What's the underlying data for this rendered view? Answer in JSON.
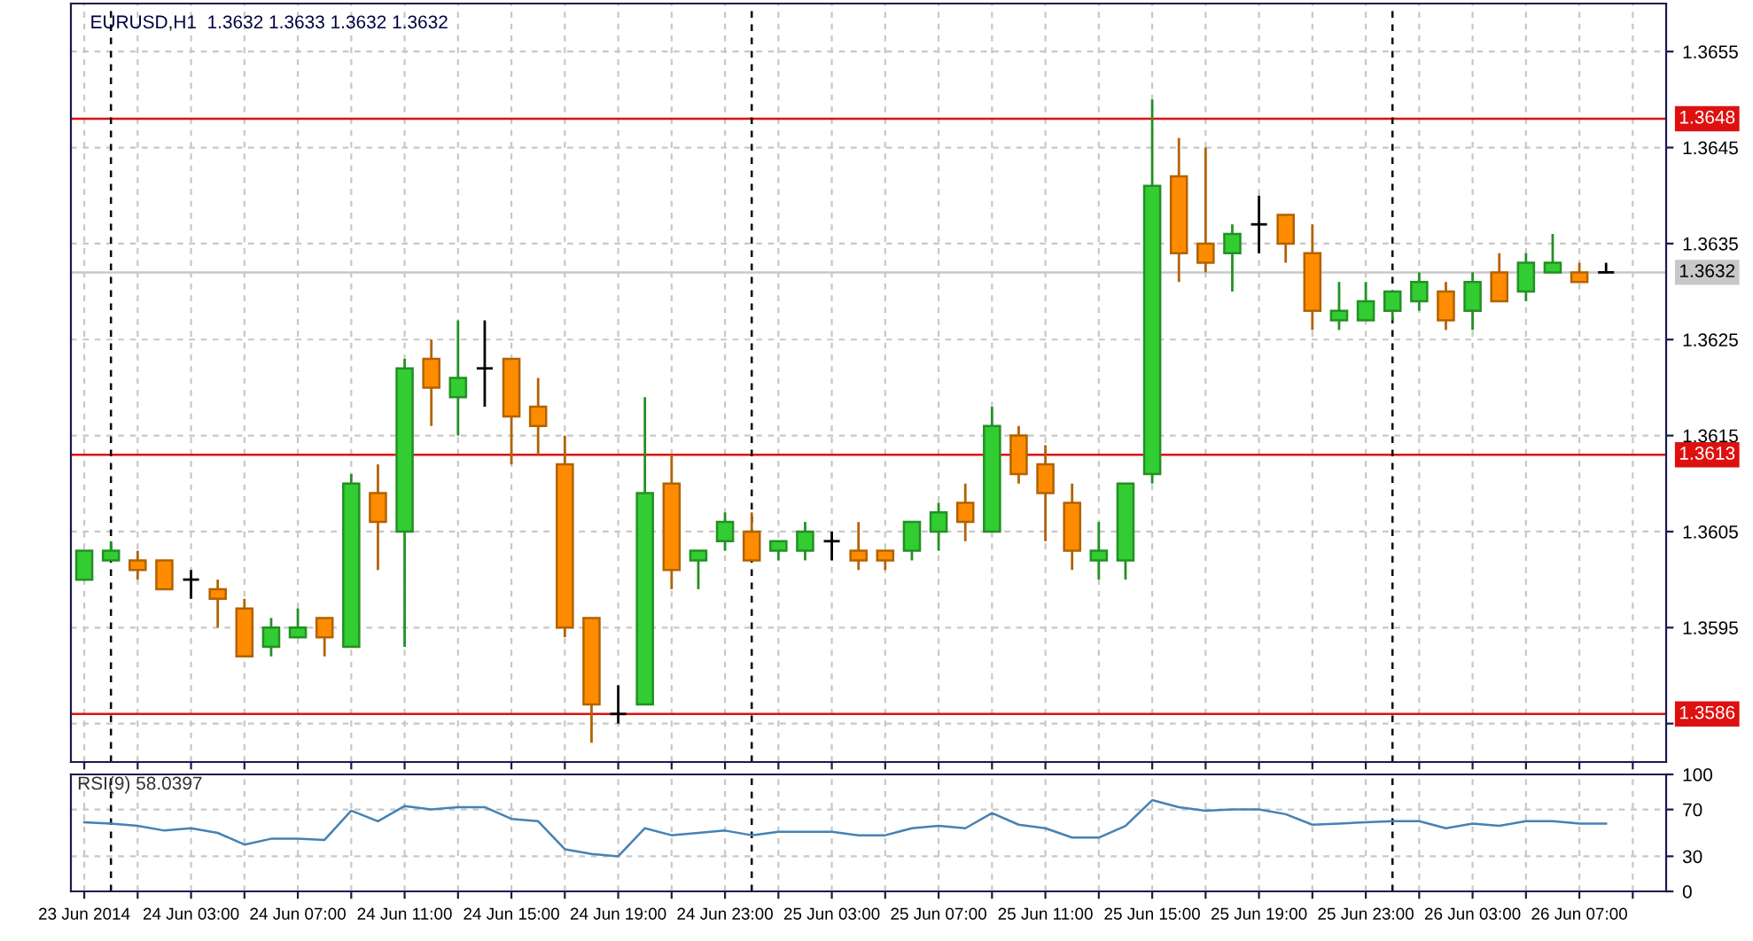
{
  "chart_data": [
    {
      "type": "candlestick",
      "title": "EURUSD,H1  1.3632 1.3633 1.3632 1.3632",
      "x": [
        "2014-06-23T23:00",
        "2014-06-24T00:00",
        "2014-06-24T01:00",
        "2014-06-24T02:00",
        "2014-06-24T03:00",
        "2014-06-24T04:00",
        "2014-06-24T05:00",
        "2014-06-24T06:00",
        "2014-06-24T07:00",
        "2014-06-24T08:00",
        "2014-06-24T09:00",
        "2014-06-24T10:00",
        "2014-06-24T11:00",
        "2014-06-24T12:00",
        "2014-06-24T13:00",
        "2014-06-24T14:00",
        "2014-06-24T15:00",
        "2014-06-24T16:00",
        "2014-06-24T17:00",
        "2014-06-24T18:00",
        "2014-06-24T19:00",
        "2014-06-24T20:00",
        "2014-06-24T21:00",
        "2014-06-24T22:00",
        "2014-06-24T23:00",
        "2014-06-25T00:00",
        "2014-06-25T01:00",
        "2014-06-25T02:00",
        "2014-06-25T03:00",
        "2014-06-25T04:00",
        "2014-06-25T05:00",
        "2014-06-25T06:00",
        "2014-06-25T07:00",
        "2014-06-25T08:00",
        "2014-06-25T09:00",
        "2014-06-25T10:00",
        "2014-06-25T11:00",
        "2014-06-25T12:00",
        "2014-06-25T13:00",
        "2014-06-25T14:00",
        "2014-06-25T15:00",
        "2014-06-25T16:00",
        "2014-06-25T17:00",
        "2014-06-25T18:00",
        "2014-06-25T19:00",
        "2014-06-25T20:00",
        "2014-06-25T21:00",
        "2014-06-25T22:00",
        "2014-06-25T23:00",
        "2014-06-26T00:00",
        "2014-06-26T01:00",
        "2014-06-26T02:00",
        "2014-06-26T03:00",
        "2014-06-26T04:00",
        "2014-06-26T05:00",
        "2014-06-26T06:00",
        "2014-06-26T07:00",
        "2014-06-26T08:00"
      ],
      "ohlc": [
        [
          1.36,
          1.3603,
          1.36,
          1.3603
        ],
        [
          1.3602,
          1.3604,
          1.3602,
          1.3603
        ],
        [
          1.3602,
          1.3603,
          1.36,
          1.3601
        ],
        [
          1.3602,
          1.3602,
          1.3599,
          1.3599
        ],
        [
          1.36,
          1.3601,
          1.3598,
          1.36
        ],
        [
          1.3599,
          1.36,
          1.3595,
          1.3598
        ],
        [
          1.3597,
          1.3598,
          1.3592,
          1.3592
        ],
        [
          1.3593,
          1.3596,
          1.3592,
          1.3595
        ],
        [
          1.3594,
          1.3597,
          1.3594,
          1.3595
        ],
        [
          1.3596,
          1.3596,
          1.3592,
          1.3594
        ],
        [
          1.3593,
          1.3611,
          1.3593,
          1.361
        ],
        [
          1.3609,
          1.3612,
          1.3601,
          1.3606
        ],
        [
          1.3605,
          1.3623,
          1.3593,
          1.3622
        ],
        [
          1.3623,
          1.3625,
          1.3616,
          1.362
        ],
        [
          1.3619,
          1.3627,
          1.3615,
          1.3621
        ],
        [
          1.3622,
          1.3627,
          1.3618,
          1.3622
        ],
        [
          1.3623,
          1.3623,
          1.3612,
          1.3617
        ],
        [
          1.3618,
          1.3621,
          1.3613,
          1.3616
        ],
        [
          1.3612,
          1.3615,
          1.3594,
          1.3595
        ],
        [
          1.3596,
          1.3596,
          1.3583,
          1.3587
        ],
        [
          1.3586,
          1.3589,
          1.3585,
          1.3586
        ],
        [
          1.3587,
          1.3619,
          1.3587,
          1.3609
        ],
        [
          1.361,
          1.3613,
          1.3599,
          1.3601
        ],
        [
          1.3602,
          1.3603,
          1.3599,
          1.3603
        ],
        [
          1.3604,
          1.3607,
          1.3603,
          1.3606
        ],
        [
          1.3605,
          1.3607,
          1.3602,
          1.3602
        ],
        [
          1.3603,
          1.3604,
          1.3602,
          1.3604
        ],
        [
          1.3603,
          1.3606,
          1.3602,
          1.3605
        ],
        [
          1.3604,
          1.3605,
          1.3602,
          1.3604
        ],
        [
          1.3603,
          1.3606,
          1.3601,
          1.3602
        ],
        [
          1.3603,
          1.3603,
          1.3601,
          1.3602
        ],
        [
          1.3603,
          1.3606,
          1.3602,
          1.3606
        ],
        [
          1.3605,
          1.3608,
          1.3603,
          1.3607
        ],
        [
          1.3608,
          1.361,
          1.3604,
          1.3606
        ],
        [
          1.3605,
          1.3618,
          1.3605,
          1.3616
        ],
        [
          1.3615,
          1.3616,
          1.361,
          1.3611
        ],
        [
          1.3612,
          1.3614,
          1.3604,
          1.3609
        ],
        [
          1.3608,
          1.361,
          1.3601,
          1.3603
        ],
        [
          1.3602,
          1.3606,
          1.36,
          1.3603
        ],
        [
          1.3602,
          1.361,
          1.36,
          1.361
        ],
        [
          1.3611,
          1.365,
          1.361,
          1.3641
        ],
        [
          1.3642,
          1.3646,
          1.3631,
          1.3634
        ],
        [
          1.3635,
          1.3645,
          1.3632,
          1.3633
        ],
        [
          1.3634,
          1.3637,
          1.363,
          1.3636
        ],
        [
          1.3637,
          1.364,
          1.3634,
          1.3637
        ],
        [
          1.3638,
          1.3638,
          1.3633,
          1.3635
        ],
        [
          1.3634,
          1.3637,
          1.3626,
          1.3628
        ],
        [
          1.3627,
          1.3631,
          1.3626,
          1.3628
        ],
        [
          1.3627,
          1.3631,
          1.3627,
          1.3629
        ],
        [
          1.3628,
          1.363,
          1.3627,
          1.363
        ],
        [
          1.3629,
          1.3632,
          1.3628,
          1.3631
        ],
        [
          1.363,
          1.3631,
          1.3626,
          1.3627
        ],
        [
          1.3628,
          1.3632,
          1.3626,
          1.3631
        ],
        [
          1.3632,
          1.3634,
          1.3629,
          1.3629
        ],
        [
          1.363,
          1.3634,
          1.3629,
          1.3633
        ],
        [
          1.3632,
          1.3636,
          1.3632,
          1.3633
        ],
        [
          1.3632,
          1.3633,
          1.3631,
          1.3631
        ],
        [
          1.3632,
          1.3633,
          1.3632,
          1.3632
        ]
      ],
      "colors": [
        "#32cd32",
        "#32cd32",
        "#ff8c00",
        "#ff8c00",
        "#000000",
        "#ff8c00",
        "#ff8c00",
        "#32cd32",
        "#32cd32",
        "#ff8c00",
        "#32cd32",
        "#ff8c00",
        "#32cd32",
        "#ff8c00",
        "#32cd32",
        "#000000",
        "#ff8c00",
        "#ff8c00",
        "#ff8c00",
        "#ff8c00",
        "#000000",
        "#32cd32",
        "#ff8c00",
        "#32cd32",
        "#32cd32",
        "#ff8c00",
        "#32cd32",
        "#32cd32",
        "#000000",
        "#ff8c00",
        "#ff8c00",
        "#32cd32",
        "#32cd32",
        "#ff8c00",
        "#32cd32",
        "#ff8c00",
        "#ff8c00",
        "#ff8c00",
        "#32cd32",
        "#32cd32",
        "#32cd32",
        "#ff8c00",
        "#ff8c00",
        "#32cd32",
        "#000000",
        "#ff8c00",
        "#ff8c00",
        "#32cd32",
        "#32cd32",
        "#32cd32",
        "#32cd32",
        "#ff8c00",
        "#32cd32",
        "#ff8c00",
        "#32cd32",
        "#32cd32",
        "#ff8c00",
        "#000000"
      ],
      "ylim": [
        1.3581,
        1.366
      ],
      "yticks": [
        {
          "value": 1.3585,
          "label": null
        },
        1.3595,
        1.3605,
        1.3615,
        1.3625,
        1.3635,
        1.3645,
        1.3655
      ],
      "xlim": [
        "2014-06-23T22:30",
        "2014-06-26T10:15"
      ],
      "xticks": [
        {
          "value": "2014-06-23T23:00",
          "label": null
        },
        {
          "value": "2014-06-24T01:00",
          "label": null
        },
        {
          "value": "2014-06-24T03:00",
          "label": null
        },
        {
          "value": "2014-06-24T05:00",
          "label": null
        },
        {
          "value": "2014-06-24T07:00",
          "label": null
        },
        {
          "value": "2014-06-24T09:00",
          "label": null
        },
        {
          "value": "2014-06-24T11:00",
          "label": null
        },
        {
          "value": "2014-06-24T13:00",
          "label": null
        },
        {
          "value": "2014-06-24T15:00",
          "label": null
        },
        {
          "value": "2014-06-24T17:00",
          "label": null
        },
        {
          "value": "2014-06-24T19:00",
          "label": null
        },
        {
          "value": "2014-06-24T21:00",
          "label": null
        },
        {
          "value": "2014-06-24T23:00",
          "label": null
        },
        {
          "value": "2014-06-25T01:00",
          "label": null
        },
        {
          "value": "2014-06-25T03:00",
          "label": null
        },
        {
          "value": "2014-06-25T05:00",
          "label": null
        },
        {
          "value": "2014-06-25T07:00",
          "label": null
        },
        {
          "value": "2014-06-25T09:00",
          "label": null
        },
        {
          "value": "2014-06-25T11:00",
          "label": null
        },
        {
          "value": "2014-06-25T13:00",
          "label": null
        },
        {
          "value": "2014-06-25T15:00",
          "label": null
        },
        {
          "value": "2014-06-25T17:00",
          "label": null
        },
        {
          "value": "2014-06-25T19:00",
          "label": null
        },
        {
          "value": "2014-06-25T21:00",
          "label": null
        },
        {
          "value": "2014-06-25T23:00",
          "label": null
        },
        {
          "value": "2014-06-26T01:00",
          "label": null
        },
        {
          "value": "2014-06-26T03:00",
          "label": null
        },
        {
          "value": "2014-06-26T05:00",
          "label": null
        },
        {
          "value": "2014-06-26T07:00",
          "label": null
        },
        {
          "value": "2014-06-26T09:00",
          "label": null
        }
      ],
      "tick_labels": "y",
      "grid": true,
      "ref_lines": [
        {
          "axis": "y",
          "value": 1.3648,
          "label": "1.3648",
          "color": "#dd1111"
        },
        {
          "axis": "y",
          "value": 1.3613,
          "label": "1.3613",
          "color": "#dd1111"
        },
        {
          "axis": "y",
          "value": 1.3586,
          "label": "1.3586",
          "color": "#dd1111"
        },
        {
          "axis": "y",
          "value": 1.3632,
          "label": "1.3632",
          "color": "#c8c8c8"
        },
        {
          "axis": "x",
          "value": "2014-06-24T00:00",
          "color": "#000000",
          "line_style": "dashed"
        },
        {
          "axis": "x",
          "value": "2014-06-25T00:00",
          "color": "#000000",
          "line_style": "dashed"
        },
        {
          "axis": "x",
          "value": "2014-06-26T00:00",
          "color": "#000000",
          "line_style": "dashed"
        }
      ]
    },
    {
      "type": "line",
      "title": "RSI(9) 58.0397",
      "x": [
        "2014-06-23T23:00",
        "2014-06-24T00:00",
        "2014-06-24T01:00",
        "2014-06-24T02:00",
        "2014-06-24T03:00",
        "2014-06-24T04:00",
        "2014-06-24T05:00",
        "2014-06-24T06:00",
        "2014-06-24T07:00",
        "2014-06-24T08:00",
        "2014-06-24T09:00",
        "2014-06-24T10:00",
        "2014-06-24T11:00",
        "2014-06-24T12:00",
        "2014-06-24T13:00",
        "2014-06-24T14:00",
        "2014-06-24T15:00",
        "2014-06-24T16:00",
        "2014-06-24T17:00",
        "2014-06-24T18:00",
        "2014-06-24T19:00",
        "2014-06-24T20:00",
        "2014-06-24T21:00",
        "2014-06-24T22:00",
        "2014-06-24T23:00",
        "2014-06-25T00:00",
        "2014-06-25T01:00",
        "2014-06-25T02:00",
        "2014-06-25T03:00",
        "2014-06-25T04:00",
        "2014-06-25T05:00",
        "2014-06-25T06:00",
        "2014-06-25T07:00",
        "2014-06-25T08:00",
        "2014-06-25T09:00",
        "2014-06-25T10:00",
        "2014-06-25T11:00",
        "2014-06-25T12:00",
        "2014-06-25T13:00",
        "2014-06-25T14:00",
        "2014-06-25T15:00",
        "2014-06-25T16:00",
        "2014-06-25T17:00",
        "2014-06-25T18:00",
        "2014-06-25T19:00",
        "2014-06-25T20:00",
        "2014-06-25T21:00",
        "2014-06-25T22:00",
        "2014-06-25T23:00",
        "2014-06-26T00:00",
        "2014-06-26T01:00",
        "2014-06-26T02:00",
        "2014-06-26T03:00",
        "2014-06-26T04:00",
        "2014-06-26T05:00",
        "2014-06-26T06:00",
        "2014-06-26T07:00",
        "2014-06-26T08:00"
      ],
      "series": [
        {
          "color": "#4682b4",
          "values": [
            59,
            58,
            56,
            52,
            54,
            50,
            40,
            45,
            45,
            44,
            69,
            60,
            73,
            70,
            72,
            72,
            62,
            60,
            36,
            32,
            30,
            54,
            48,
            50,
            52,
            48,
            51,
            51,
            51,
            48,
            48,
            54,
            56,
            54,
            67,
            57,
            54,
            46,
            46,
            56,
            78,
            72,
            69,
            70,
            70,
            66,
            57,
            58,
            59,
            60,
            60,
            54,
            58,
            56,
            60,
            60,
            58,
            58
          ]
        }
      ],
      "ylim": [
        0,
        100
      ],
      "yticks": [
        0,
        30,
        70,
        100
      ],
      "xlim": [
        "2014-06-23T22:30",
        "2014-06-26T10:15"
      ],
      "xticks": [
        {
          "value": "2014-06-23T23:00",
          "label": "23 Jun 2014"
        },
        {
          "value": "2014-06-24T01:00",
          "label": null
        },
        {
          "value": "2014-06-24T03:00",
          "label": "24 Jun 03:00"
        },
        {
          "value": "2014-06-24T05:00",
          "label": null
        },
        {
          "value": "2014-06-24T07:00",
          "label": "24 Jun 07:00"
        },
        {
          "value": "2014-06-24T09:00",
          "label": null
        },
        {
          "value": "2014-06-24T11:00",
          "label": "24 Jun 11:00"
        },
        {
          "value": "2014-06-24T13:00",
          "label": null
        },
        {
          "value": "2014-06-24T15:00",
          "label": "24 Jun 15:00"
        },
        {
          "value": "2014-06-24T17:00",
          "label": null
        },
        {
          "value": "2014-06-24T19:00",
          "label": "24 Jun 19:00"
        },
        {
          "value": "2014-06-24T21:00",
          "label": null
        },
        {
          "value": "2014-06-24T23:00",
          "label": "24 Jun 23:00"
        },
        {
          "value": "2014-06-25T01:00",
          "label": null
        },
        {
          "value": "2014-06-25T03:00",
          "label": "25 Jun 03:00"
        },
        {
          "value": "2014-06-25T05:00",
          "label": null
        },
        {
          "value": "2014-06-25T07:00",
          "label": "25 Jun 07:00"
        },
        {
          "value": "2014-06-25T09:00",
          "label": null
        },
        {
          "value": "2014-06-25T11:00",
          "label": "25 Jun 11:00"
        },
        {
          "value": "2014-06-25T13:00",
          "label": null
        },
        {
          "value": "2014-06-25T15:00",
          "label": "25 Jun 15:00"
        },
        {
          "value": "2014-06-25T17:00",
          "label": null
        },
        {
          "value": "2014-06-25T19:00",
          "label": "25 Jun 19:00"
        },
        {
          "value": "2014-06-25T21:00",
          "label": null
        },
        {
          "value": "2014-06-25T23:00",
          "label": "25 Jun 23:00"
        },
        {
          "value": "2014-06-26T01:00",
          "label": null
        },
        {
          "value": "2014-06-26T03:00",
          "label": "26 Jun 03:00"
        },
        {
          "value": "2014-06-26T05:00",
          "label": null
        },
        {
          "value": "2014-06-26T07:00",
          "label": "26 Jun 07:00"
        },
        {
          "value": "2014-06-26T09:00",
          "label": null
        }
      ],
      "grid": true,
      "ref_lines": [
        {
          "axis": "x",
          "value": "2014-06-24T00:00",
          "color": "#000000",
          "line_style": "dashed"
        },
        {
          "axis": "x",
          "value": "2014-06-25T00:00",
          "color": "#000000",
          "line_style": "dashed"
        },
        {
          "axis": "x",
          "value": "2014-06-26T00:00",
          "color": "#000000",
          "line_style": "dashed"
        }
      ]
    }
  ]
}
